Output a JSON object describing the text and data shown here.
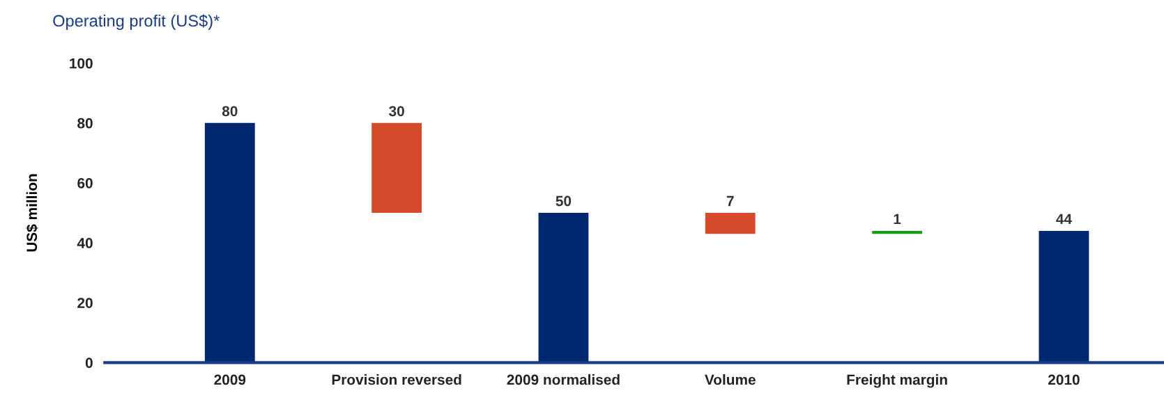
{
  "chart_data": {
    "type": "bar",
    "title": "Operating profit (US$)*",
    "ylabel": "US$ million",
    "categories": [
      "2009",
      "Provision reversed",
      "2009 normalised",
      "Volume",
      "Freight margin",
      "2010"
    ],
    "values": [
      80,
      30,
      50,
      7,
      1,
      44
    ],
    "base": [
      0,
      50,
      0,
      43,
      43,
      0
    ],
    "colors": [
      "#002870",
      "#d44a2a",
      "#002870",
      "#d44a2a",
      "#10a010",
      "#002870"
    ],
    "ylim": [
      0,
      100
    ],
    "yticks": [
      0,
      20,
      40,
      60,
      80,
      100
    ],
    "grid": false,
    "data_labels": true
  }
}
